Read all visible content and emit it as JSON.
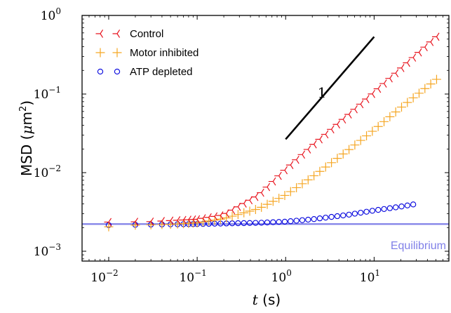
{
  "chart_data": {
    "type": "scatter",
    "x_scale": "log",
    "y_scale": "log",
    "xlim": [
      0.005,
      70
    ],
    "ylim": [
      0.00075,
      1.0
    ],
    "xlabel_var": "t",
    "xlabel_unit": " (s)",
    "ylabel": "MSD (",
    "ylabel_var": "μ",
    "ylabel_unit": "m",
    "ylabel_exp": "2",
    "ylabel_close": ")",
    "x_ticks": [
      {
        "value": 0.01,
        "base": "10",
        "exp": "−2"
      },
      {
        "value": 0.1,
        "base": "10",
        "exp": "−1"
      },
      {
        "value": 1,
        "base": "10",
        "exp": "0"
      },
      {
        "value": 10,
        "base": "10",
        "exp": "1"
      }
    ],
    "y_ticks": [
      {
        "value": 0.001,
        "base": "10",
        "exp": "−3"
      },
      {
        "value": 0.01,
        "base": "10",
        "exp": "−2"
      },
      {
        "value": 0.1,
        "base": "10",
        "exp": "−1"
      },
      {
        "value": 1,
        "base": "10",
        "exp": "0"
      }
    ],
    "legend_position": "top-left",
    "series": [
      {
        "name": "Control",
        "marker": "tri-left",
        "color": "#e8141e",
        "x_start": 0.01,
        "x_end": 55,
        "spacing": "log-uniform",
        "anchors_x": [
          0.01,
          0.03,
          0.1,
          0.2,
          0.5,
          1,
          2,
          5,
          10,
          20,
          55
        ],
        "anchors_y": [
          0.00235,
          0.00238,
          0.00255,
          0.0029,
          0.0052,
          0.011,
          0.022,
          0.053,
          0.105,
          0.21,
          0.58
        ]
      },
      {
        "name": "Motor inhibited",
        "marker": "plus",
        "color": "#f5a623",
        "x_start": 0.01,
        "x_end": 55,
        "spacing": "log-uniform",
        "anchors_x": [
          0.01,
          0.02,
          0.05,
          0.1,
          0.2,
          0.5,
          1,
          2,
          5,
          10,
          20,
          55
        ],
        "anchors_y": [
          0.00205,
          0.00215,
          0.0022,
          0.0023,
          0.0026,
          0.0035,
          0.0052,
          0.0088,
          0.019,
          0.035,
          0.067,
          0.165
        ]
      },
      {
        "name": "ATP depleted",
        "marker": "circle",
        "color": "#0000dd",
        "x_start": 0.01,
        "x_end": 30,
        "spacing": "log-uniform",
        "anchors_x": [
          0.01,
          0.1,
          0.5,
          1,
          2,
          5,
          10,
          20,
          30
        ],
        "anchors_y": [
          0.00215,
          0.00222,
          0.0023,
          0.00238,
          0.00255,
          0.0029,
          0.0033,
          0.0037,
          0.004
        ]
      }
    ],
    "equilibrium": {
      "label": "Equilibrium",
      "y": 0.00222,
      "color": "#8080e8"
    },
    "slope_guide": {
      "label": "1",
      "x": [
        1,
        10
      ],
      "y": [
        0.025,
        0.25
      ]
    }
  }
}
